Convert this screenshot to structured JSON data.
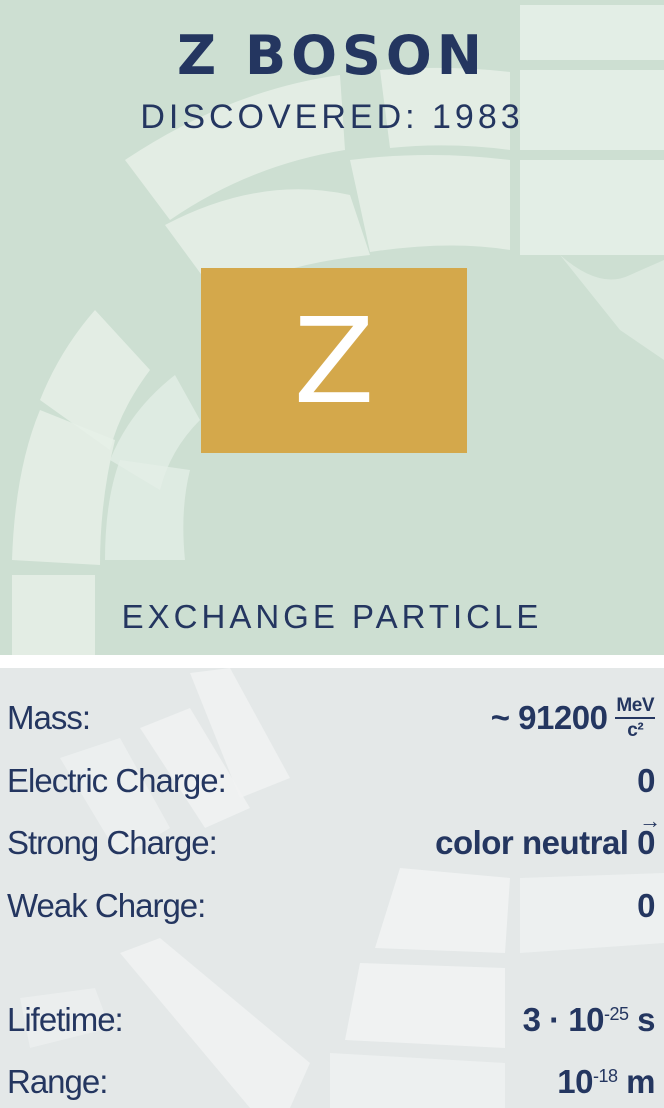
{
  "particle": {
    "name": "Z BOSON",
    "discovered": "DISCOVERED: 1983",
    "symbol": "Z",
    "category": "EXCHANGE PARTICLE"
  },
  "properties": {
    "mass": {
      "label": "Mass:",
      "prefix": "~",
      "value": "91200",
      "unit_num": "MeV",
      "unit_den": "c²"
    },
    "electric_charge": {
      "label": "Electric Charge:",
      "value": "0"
    },
    "strong_charge": {
      "label": "Strong Charge:",
      "value": "color neutral",
      "vector": "0"
    },
    "weak_charge": {
      "label": "Weak Charge:",
      "value": "0"
    },
    "lifetime": {
      "label": "Lifetime:",
      "base": "3 · 10",
      "exponent": "-25",
      "unit": "s"
    },
    "range": {
      "label": "Range:",
      "base": "10",
      "exponent": "-18",
      "unit": "m"
    }
  },
  "colors": {
    "top_background": "#cddfd2",
    "bottom_background": "#e4e8e8",
    "symbol_box": "#d4a84b",
    "text": "#243660"
  }
}
